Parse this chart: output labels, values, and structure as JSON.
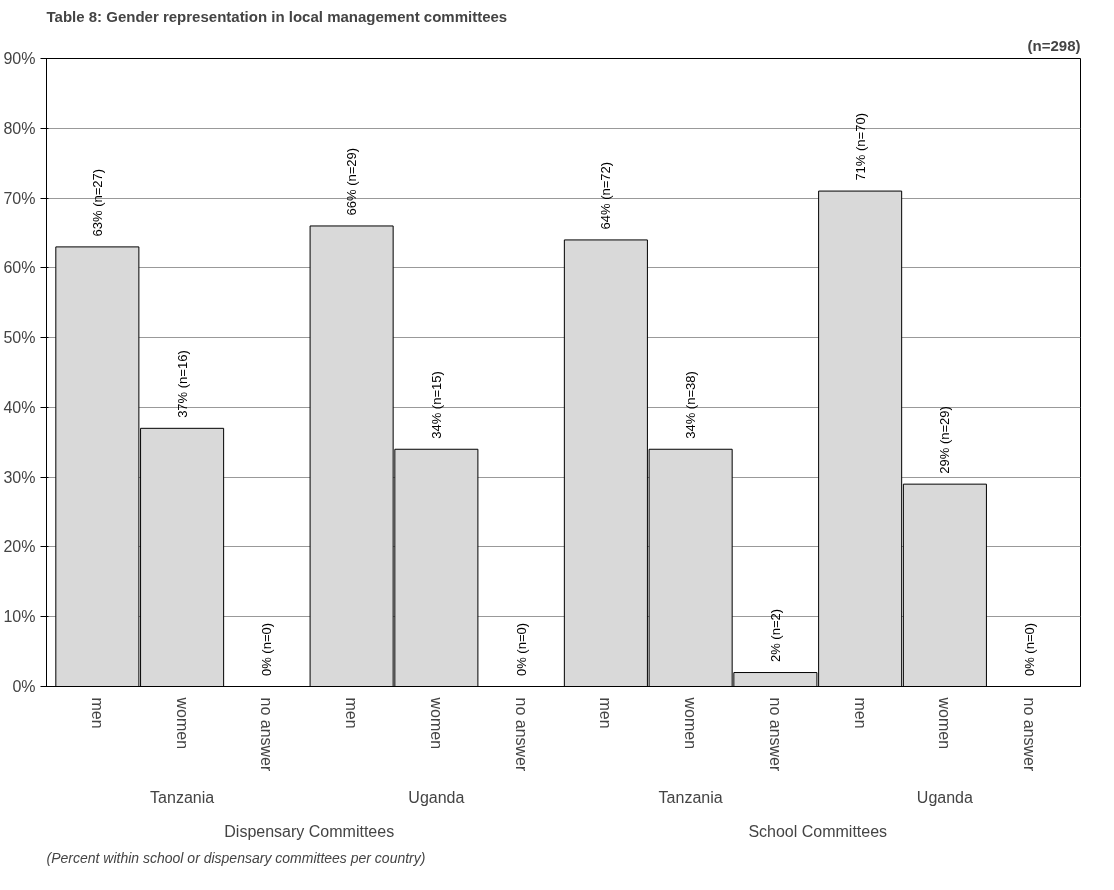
{
  "chart_data": {
    "type": "bar",
    "title": "Table 8: Gender representation in local management committees",
    "subtitle": "(n=298)",
    "categories": [
      "men",
      "women",
      "no answer",
      "men",
      "women",
      "no answer",
      "men",
      "women",
      "no answer",
      "men",
      "women",
      "no answer"
    ],
    "values": [
      63,
      37,
      0,
      66,
      34,
      0,
      64,
      34,
      2,
      71,
      29,
      0
    ],
    "value_labels": [
      "63% (n=27)",
      "37% (n=16)",
      "0% (n=0)",
      "66% (n=29)",
      "34% (n=15)",
      "0% (n=0)",
      "64% (n=72)",
      "34% (n=38)",
      "2% (n=2)",
      "71% (n=70)",
      "29% (n=29)",
      "0% (n=0)"
    ],
    "color": "#d9d9d9",
    "ylim": [
      0,
      90
    ],
    "yticks": [
      {
        "value": 0,
        "label": "0%"
      },
      {
        "value": 10,
        "label": "10%"
      },
      {
        "value": 20,
        "label": "20%"
      },
      {
        "value": 30,
        "label": "30%"
      },
      {
        "value": 40,
        "label": "40%"
      },
      {
        "value": 50,
        "label": "50%"
      },
      {
        "value": 60,
        "label": "60%"
      },
      {
        "value": 70,
        "label": "70%"
      },
      {
        "value": 80,
        "label": "80%"
      },
      {
        "value": 90,
        "label": "90%"
      }
    ],
    "grid": "y",
    "annotations": [
      "Tanzania",
      "Uganda",
      "Tanzania",
      "Uganda",
      "Dispensary Committees",
      "School Committees",
      "(Percent within school or dispensary committees per country)"
    ]
  }
}
